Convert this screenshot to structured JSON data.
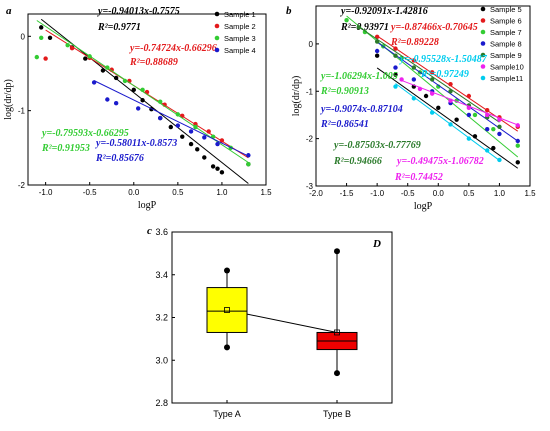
{
  "chart_data": [
    {
      "panel_label": "a",
      "type": "scatter",
      "xlabel": "logP",
      "ylabel": "log(dr/dp)",
      "xlim": [
        -1.2,
        1.5
      ],
      "ylim": [
        -2,
        0.3
      ],
      "xticks": [
        "-1.0",
        "-0.5",
        "0.0",
        "0.5",
        "1.0",
        "1.5"
      ],
      "yticks": [
        "-2",
        "-1",
        "0"
      ],
      "legend_position": "top-right",
      "series": [
        {
          "name": "Sample 1",
          "color": "#000000",
          "points": [
            [
              -1.05,
              0.12
            ],
            [
              -0.95,
              -0.02
            ],
            [
              -0.7,
              -0.15
            ],
            [
              -0.55,
              -0.3
            ],
            [
              -0.35,
              -0.46
            ],
            [
              -0.2,
              -0.56
            ],
            [
              0.0,
              -0.72
            ],
            [
              0.1,
              -0.86
            ],
            [
              0.2,
              -0.98
            ],
            [
              0.3,
              -1.1
            ],
            [
              0.42,
              -1.22
            ],
            [
              0.55,
              -1.35
            ],
            [
              0.65,
              -1.45
            ],
            [
              0.72,
              -1.52
            ],
            [
              0.8,
              -1.63
            ],
            [
              0.9,
              -1.75
            ],
            [
              0.95,
              -1.78
            ],
            [
              1.0,
              -1.83
            ],
            [
              1.3,
              -1.72
            ]
          ],
          "fit": {
            "slope": -0.94013,
            "intercept": -0.7575,
            "xrange": [
              -1.05,
              1.3
            ],
            "equation": "y=-0.94013x-0.7575",
            "r2": "R²=0.9771"
          }
        },
        {
          "name": "Sample 2",
          "color": "#e31a1c",
          "points": [
            [
              -1.0,
              -0.3
            ],
            [
              -0.7,
              -0.16
            ],
            [
              -0.5,
              -0.29
            ],
            [
              -0.25,
              -0.45
            ],
            [
              -0.05,
              -0.6
            ],
            [
              0.15,
              -0.75
            ],
            [
              0.35,
              -0.92
            ],
            [
              0.55,
              -1.07
            ],
            [
              0.7,
              -1.18
            ],
            [
              0.85,
              -1.28
            ],
            [
              1.0,
              -1.4
            ]
          ],
          "fit": {
            "slope": -0.74724,
            "intercept": -0.66296,
            "xrange": [
              -1.0,
              1.3
            ],
            "equation": "y=-0.74724x-0.66296",
            "r2": "R²=0.88689"
          }
        },
        {
          "name": "Sample 3",
          "color": "#33cc33",
          "points": [
            [
              -1.1,
              -0.28
            ],
            [
              -1.05,
              -0.02
            ],
            [
              -0.75,
              -0.12
            ],
            [
              -0.5,
              -0.27
            ],
            [
              -0.3,
              -0.42
            ],
            [
              -0.1,
              -0.6
            ],
            [
              0.1,
              -0.72
            ],
            [
              0.3,
              -0.88
            ],
            [
              0.5,
              -1.05
            ],
            [
              0.7,
              -1.22
            ],
            [
              0.9,
              -1.35
            ],
            [
              1.1,
              -1.5
            ],
            [
              1.3,
              -1.72
            ]
          ],
          "fit": {
            "slope": -0.79593,
            "intercept": -0.66295,
            "xrange": [
              -1.1,
              1.3
            ],
            "equation": "y=-0.79593x-0.66295",
            "r2": "R²=0.91953"
          }
        },
        {
          "name": "Sample 4",
          "color": "#1a1acc",
          "points": [
            [
              -0.45,
              -0.62
            ],
            [
              -0.3,
              -0.85
            ],
            [
              -0.2,
              -0.9
            ],
            [
              0.05,
              -0.97
            ],
            [
              0.3,
              -1.1
            ],
            [
              0.5,
              -1.2
            ],
            [
              0.65,
              -1.28
            ],
            [
              0.8,
              -1.36
            ],
            [
              0.95,
              -1.45
            ],
            [
              1.3,
              -1.6
            ]
          ],
          "fit": {
            "slope": -0.58011,
            "intercept": -0.8573,
            "xrange": [
              -0.45,
              1.3
            ],
            "equation": "y=-0.58011x-0.8573",
            "r2": "R²=0.85676"
          }
        }
      ]
    },
    {
      "panel_label": "b",
      "type": "scatter",
      "xlabel": "logP",
      "ylabel": "log(dr/dp)",
      "xlim": [
        -2.0,
        1.5
      ],
      "ylim": [
        -3.0,
        0.8
      ],
      "xticks": [
        "-2.0",
        "-1.5",
        "-1.0",
        "-0.5",
        "0.0",
        "0.5",
        "1.0",
        "1.5"
      ],
      "yticks": [
        "-3",
        "-2",
        "-1",
        "0"
      ],
      "legend_position": "top-right",
      "series": [
        {
          "name": "Sample 5",
          "color": "#000000",
          "points": [
            [
              -1.0,
              -0.25
            ],
            [
              -0.7,
              -0.65
            ],
            [
              -0.4,
              -0.9
            ],
            [
              -0.2,
              -1.1
            ],
            [
              0.0,
              -1.35
            ],
            [
              0.3,
              -1.6
            ],
            [
              0.6,
              -1.95
            ],
            [
              0.9,
              -2.2
            ],
            [
              1.3,
              -2.5
            ]
          ],
          "fit": {
            "slope": -0.92091,
            "intercept": -1.42816,
            "xrange": [
              -1.0,
              1.3
            ],
            "equation": "y=-0.92091x-1.42816",
            "r2": "R²=0.93971"
          }
        },
        {
          "name": "Sample 6",
          "color": "#e31a1c",
          "points": [
            [
              -1.0,
              0.15
            ],
            [
              -0.7,
              -0.1
            ],
            [
              -0.4,
              -0.35
            ],
            [
              -0.1,
              -0.6
            ],
            [
              0.2,
              -0.85
            ],
            [
              0.5,
              -1.1
            ],
            [
              0.8,
              -1.4
            ],
            [
              1.0,
              -1.55
            ],
            [
              1.3,
              -1.75
            ]
          ],
          "fit": {
            "slope": -0.87466,
            "intercept": -0.70645,
            "xrange": [
              -1.0,
              1.3
            ],
            "equation": "y=-0.87466x-0.70645",
            "r2": "R²=0.89228"
          }
        },
        {
          "name": "Sample 7",
          "color": "#33cc33",
          "points": [
            [
              -1.5,
              0.5
            ],
            [
              -1.2,
              0.25
            ],
            [
              -0.9,
              -0.05
            ],
            [
              -0.6,
              -0.3
            ],
            [
              -0.3,
              -0.6
            ],
            [
              0.0,
              -0.9
            ],
            [
              0.3,
              -1.2
            ],
            [
              0.6,
              -1.5
            ],
            [
              0.9,
              -1.8
            ],
            [
              1.3,
              -2.15
            ]
          ],
          "fit": {
            "slope": -1.06294,
            "intercept": -1.005,
            "xrange": [
              -1.5,
              1.3
            ],
            "equation": "y=-1.06294x-1.005",
            "r2": "R²=0.90913"
          }
        },
        {
          "name": "Sample 8",
          "color": "#1a1acc",
          "points": [
            [
              -1.0,
              -0.15
            ],
            [
              -0.7,
              -0.5
            ],
            [
              -0.4,
              -0.75
            ],
            [
              -0.1,
              -1.0
            ],
            [
              0.2,
              -1.25
            ],
            [
              0.5,
              -1.5
            ],
            [
              0.8,
              -1.8
            ],
            [
              1.0,
              -1.9
            ],
            [
              1.3,
              -2.05
            ]
          ],
          "fit": {
            "slope": -0.9074,
            "intercept": -0.87104,
            "xrange": [
              -1.0,
              1.3
            ],
            "equation": "y=-0.9074x-0.87104",
            "r2": "R²=0.86541"
          }
        },
        {
          "name": "Sample 9",
          "color": "#2a7a2a",
          "points": [
            [
              -1.3,
              0.35
            ],
            [
              -1.0,
              0.05
            ],
            [
              -0.7,
              -0.25
            ],
            [
              -0.4,
              -0.5
            ],
            [
              -0.1,
              -0.75
            ],
            [
              0.2,
              -1.0
            ],
            [
              0.5,
              -1.3
            ],
            [
              0.8,
              -1.55
            ],
            [
              1.0,
              -1.75
            ]
          ],
          "fit": {
            "slope": -0.87503,
            "intercept": -0.77769,
            "xrange": [
              -1.3,
              1.0
            ],
            "equation": "y=-0.87503x-0.77769",
            "r2": "R²=0.94666"
          }
        },
        {
          "name": "Sample10",
          "color": "#ee22ee",
          "points": [
            [
              -0.6,
              -0.75
            ],
            [
              -0.3,
              -0.95
            ],
            [
              -0.1,
              -1.05
            ],
            [
              0.2,
              -1.2
            ],
            [
              0.5,
              -1.35
            ],
            [
              0.8,
              -1.5
            ],
            [
              1.0,
              -1.6
            ],
            [
              1.3,
              -1.72
            ]
          ],
          "fit": {
            "slope": -0.49475,
            "intercept": -1.06782,
            "xrange": [
              -0.6,
              1.3
            ],
            "equation": "y=-0.49475x-1.06782",
            "r2": "R²=0.74452"
          }
        },
        {
          "name": "Sample11",
          "color": "#00ccee",
          "points": [
            [
              -0.7,
              -0.9
            ],
            [
              -0.4,
              -1.15
            ],
            [
              -0.1,
              -1.45
            ],
            [
              0.2,
              -1.7
            ],
            [
              0.5,
              -2.0
            ],
            [
              0.8,
              -2.25
            ],
            [
              1.0,
              -2.45
            ]
          ],
          "fit": {
            "slope": -0.95528,
            "intercept": -1.50487,
            "xrange": [
              -0.7,
              1.0
            ],
            "equation": "y=-0.95528x-1.50487",
            "r2": "R²=0.97249"
          }
        }
      ]
    },
    {
      "panel_label": "c",
      "type": "box",
      "title": "D",
      "ylim": [
        2.8,
        3.6
      ],
      "yticks": [
        "2.8",
        "3.0",
        "3.2",
        "3.4",
        "3.6"
      ],
      "categories": [
        "Type A",
        "Type B"
      ],
      "boxes": [
        {
          "category": "Type A",
          "color": "#ffff00",
          "whisker_low": 3.06,
          "q1": 3.13,
          "median": 3.23,
          "q3": 3.34,
          "whisker_high": 3.42,
          "mean": 3.235
        },
        {
          "category": "Type B",
          "color": "#ee0000",
          "whisker_low": 2.94,
          "q1": 3.05,
          "median": 3.09,
          "q3": 3.13,
          "whisker_high": 3.51,
          "mean": 3.13
        }
      ]
    }
  ]
}
